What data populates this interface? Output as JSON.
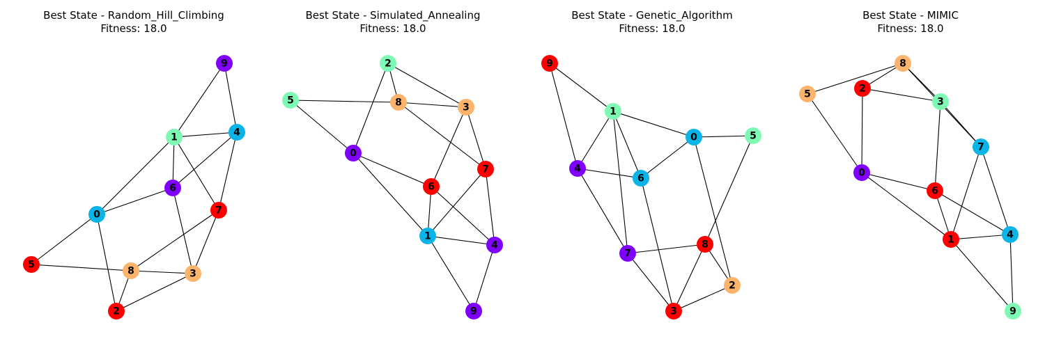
{
  "panels": [
    {
      "title_line1": "Best State - Random_Hill_Climbing",
      "title_line2": "Fitness: 18.0",
      "nodes": [
        {
          "id": "0",
          "color": "#0ab4e6"
        },
        {
          "id": "1",
          "color": "#7efab4"
        },
        {
          "id": "2",
          "color": "#ff0000"
        },
        {
          "id": "3",
          "color": "#fcb36b"
        },
        {
          "id": "4",
          "color": "#0ab4e6"
        },
        {
          "id": "5",
          "color": "#ff0000"
        },
        {
          "id": "6",
          "color": "#8000ff"
        },
        {
          "id": "7",
          "color": "#ff0000"
        },
        {
          "id": "8",
          "color": "#fcb36b"
        },
        {
          "id": "9",
          "color": "#8000ff"
        }
      ],
      "edges": [
        [
          "9",
          "1"
        ],
        [
          "9",
          "4"
        ],
        [
          "1",
          "4"
        ],
        [
          "1",
          "6"
        ],
        [
          "1",
          "0"
        ],
        [
          "1",
          "7"
        ],
        [
          "4",
          "6"
        ],
        [
          "4",
          "7"
        ],
        [
          "6",
          "0"
        ],
        [
          "6",
          "3"
        ],
        [
          "0",
          "5"
        ],
        [
          "0",
          "2"
        ],
        [
          "7",
          "8"
        ],
        [
          "7",
          "3"
        ],
        [
          "5",
          "8"
        ],
        [
          "8",
          "3"
        ],
        [
          "8",
          "2"
        ],
        [
          "2",
          "3"
        ]
      ]
    },
    {
      "title_line1": "Best State - Simulated_Annealing",
      "title_line2": "Fitness: 18.0",
      "nodes": [
        {
          "id": "0",
          "color": "#8000ff"
        },
        {
          "id": "1",
          "color": "#0ab4e6"
        },
        {
          "id": "2",
          "color": "#7efab4"
        },
        {
          "id": "3",
          "color": "#fcb36b"
        },
        {
          "id": "4",
          "color": "#8000ff"
        },
        {
          "id": "5",
          "color": "#7efab4"
        },
        {
          "id": "6",
          "color": "#ff0000"
        },
        {
          "id": "7",
          "color": "#ff0000"
        },
        {
          "id": "8",
          "color": "#fcb36b"
        },
        {
          "id": "9",
          "color": "#8000ff"
        }
      ],
      "edges": [
        [
          "2",
          "8"
        ],
        [
          "2",
          "3"
        ],
        [
          "2",
          "0"
        ],
        [
          "5",
          "8"
        ],
        [
          "5",
          "0"
        ],
        [
          "8",
          "3"
        ],
        [
          "8",
          "7"
        ],
        [
          "3",
          "6"
        ],
        [
          "3",
          "7"
        ],
        [
          "0",
          "6"
        ],
        [
          "0",
          "1"
        ],
        [
          "7",
          "1"
        ],
        [
          "7",
          "4"
        ],
        [
          "6",
          "1"
        ],
        [
          "6",
          "4"
        ],
        [
          "1",
          "4"
        ],
        [
          "1",
          "9"
        ],
        [
          "4",
          "9"
        ]
      ]
    },
    {
      "title_line1": "Best State - Genetic_Algorithm",
      "title_line2": "Fitness: 18.0",
      "nodes": [
        {
          "id": "0",
          "color": "#0ab4e6"
        },
        {
          "id": "1",
          "color": "#7efab4"
        },
        {
          "id": "2",
          "color": "#fcb36b"
        },
        {
          "id": "3",
          "color": "#ff0000"
        },
        {
          "id": "4",
          "color": "#8000ff"
        },
        {
          "id": "5",
          "color": "#7efab4"
        },
        {
          "id": "6",
          "color": "#0ab4e6"
        },
        {
          "id": "7",
          "color": "#8000ff"
        },
        {
          "id": "8",
          "color": "#ff0000"
        },
        {
          "id": "9",
          "color": "#ff0000"
        }
      ],
      "edges": [
        [
          "9",
          "1"
        ],
        [
          "9",
          "4"
        ],
        [
          "1",
          "0"
        ],
        [
          "1",
          "4"
        ],
        [
          "1",
          "6"
        ],
        [
          "1",
          "7"
        ],
        [
          "0",
          "5"
        ],
        [
          "0",
          "6"
        ],
        [
          "0",
          "2"
        ],
        [
          "4",
          "6"
        ],
        [
          "4",
          "7"
        ],
        [
          "5",
          "8"
        ],
        [
          "6",
          "3"
        ],
        [
          "7",
          "8"
        ],
        [
          "7",
          "3"
        ],
        [
          "8",
          "3"
        ],
        [
          "8",
          "2"
        ],
        [
          "3",
          "2"
        ]
      ]
    },
    {
      "title_line1": "Best State - MIMIC",
      "title_line2": "Fitness: 18.0",
      "nodes": [
        {
          "id": "0",
          "color": "#8000ff"
        },
        {
          "id": "1",
          "color": "#ff0000"
        },
        {
          "id": "2",
          "color": "#ff0000"
        },
        {
          "id": "3",
          "color": "#7efab4"
        },
        {
          "id": "4",
          "color": "#0ab4e6"
        },
        {
          "id": "5",
          "color": "#fcb36b"
        },
        {
          "id": "6",
          "color": "#ff0000"
        },
        {
          "id": "7",
          "color": "#0ab4e6"
        },
        {
          "id": "8",
          "color": "#fcb36b"
        },
        {
          "id": "9",
          "color": "#7efab4"
        }
      ],
      "edges": [
        [
          "8",
          "5"
        ],
        [
          "8",
          "2"
        ],
        [
          "8",
          "3"
        ],
        [
          "8",
          "7"
        ],
        [
          "2",
          "3"
        ],
        [
          "2",
          "0"
        ],
        [
          "5",
          "0"
        ],
        [
          "3",
          "7"
        ],
        [
          "3",
          "6"
        ],
        [
          "0",
          "6"
        ],
        [
          "0",
          "1"
        ],
        [
          "7",
          "1"
        ],
        [
          "7",
          "4"
        ],
        [
          "6",
          "1"
        ],
        [
          "6",
          "4"
        ],
        [
          "1",
          "4"
        ],
        [
          "1",
          "9"
        ],
        [
          "4",
          "9"
        ]
      ]
    }
  ]
}
